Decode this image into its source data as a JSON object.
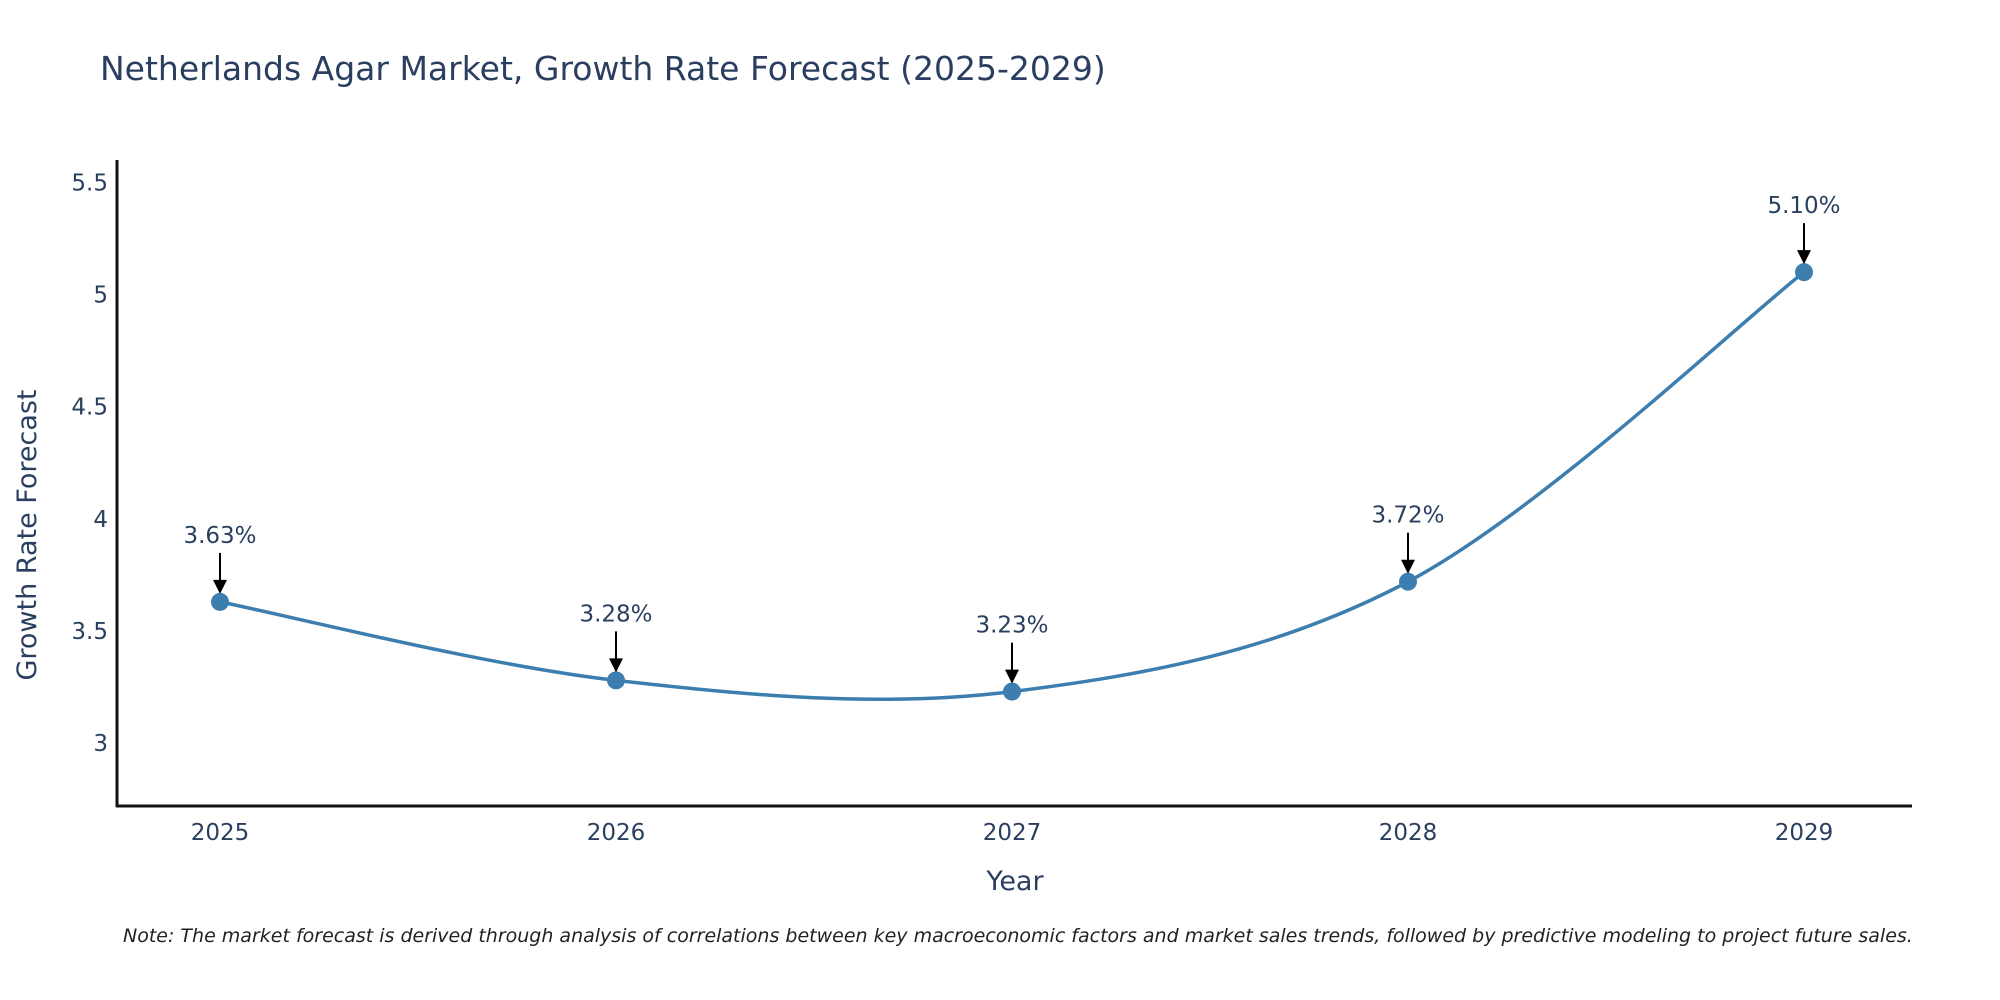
{
  "chart_data": {
    "type": "line",
    "title": "Netherlands Agar Market, Growth Rate Forecast (2025-2029)",
    "xlabel": "Year",
    "ylabel": "Growth Rate Forecast",
    "categories": [
      "2025",
      "2026",
      "2027",
      "2028",
      "2029"
    ],
    "values": [
      3.63,
      3.28,
      3.23,
      3.72,
      5.1
    ],
    "data_labels": [
      "3.63%",
      "3.28%",
      "3.23%",
      "3.72%",
      "5.10%"
    ],
    "ylim": [
      2.72,
      5.6
    ],
    "yticks": [
      3,
      3.5,
      4,
      4.5,
      5,
      5.5
    ],
    "ytick_labels": [
      "3",
      "3.5",
      "4",
      "4.5",
      "5",
      "5.5"
    ],
    "grid": false,
    "line_smoothing": "spline",
    "series_color": "#3d7eb0",
    "note": "Note: The market forecast is derived through analysis of correlations between key macroeconomic factors and market sales trends, followed by predictive modeling to project future sales."
  }
}
